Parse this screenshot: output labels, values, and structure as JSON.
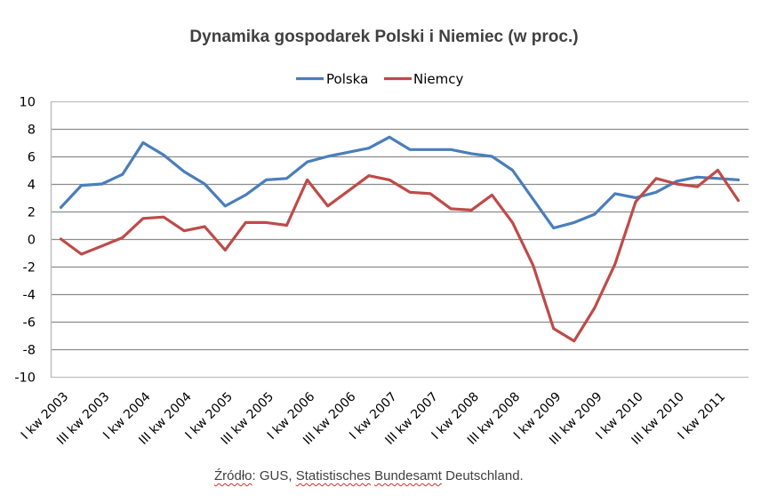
{
  "chart_data": {
    "type": "line",
    "title": "Dynamika gospodarek Polski i Niemiec (w proc.)",
    "xlabel": "",
    "ylabel": "",
    "ylim": [
      -10,
      10
    ],
    "yticks": [
      10,
      8,
      6,
      4,
      2,
      0,
      -2,
      -4,
      -6,
      -8,
      -10
    ],
    "grid": true,
    "legend_position": "top",
    "categories": [
      "I kw 2003",
      "II kw 2003",
      "III kw 2003",
      "IV kw 2003",
      "I kw 2004",
      "II kw 2004",
      "III kw 2004",
      "IV kw 2004",
      "I kw 2005",
      "II kw 2005",
      "III kw 2005",
      "IV kw 2005",
      "I kw 2006",
      "II kw 2006",
      "III kw 2006",
      "IV kw 2006",
      "I kw 2007",
      "II kw 2007",
      "III kw 2007",
      "IV kw 2007",
      "I kw 2008",
      "II kw 2008",
      "III kw 2008",
      "IV kw 2008",
      "I kw 2009",
      "II kw 2009",
      "III kw 2009",
      "IV kw 2009",
      "I kw 2010",
      "II kw 2010",
      "III kw 2010",
      "IV kw 2010",
      "I kw 2011",
      "II kw 2011"
    ],
    "visible_tick_labels": [
      "I kw 2003",
      "III kw 2003",
      "I kw 2004",
      "III kw 2004",
      "I kw 2005",
      "III kw 2005",
      "I kw 2006",
      "III kw 2006",
      "I kw 2007",
      "III kw 2007",
      "I kw 2008",
      "III kw 2008",
      "I kw 2009",
      "III kw 2009",
      "I kw 2010",
      "III kw 2010",
      "I kw 2011"
    ],
    "series": [
      {
        "name": "Polska",
        "color": "#4a7ebb",
        "values": [
          2.3,
          3.9,
          4.0,
          4.7,
          7.0,
          6.1,
          4.9,
          4.0,
          2.4,
          3.2,
          4.3,
          4.4,
          5.6,
          6.0,
          6.3,
          6.6,
          7.4,
          6.5,
          6.5,
          6.5,
          6.2,
          6.0,
          5.0,
          2.9,
          0.8,
          1.2,
          1.8,
          3.3,
          3.0,
          3.4,
          4.2,
          4.5,
          4.4,
          4.3
        ]
      },
      {
        "name": "Niemcy",
        "color": "#be4b48",
        "values": [
          0.0,
          -1.1,
          -0.5,
          0.1,
          1.5,
          1.6,
          0.6,
          0.9,
          -0.8,
          1.2,
          1.2,
          1.0,
          4.3,
          2.4,
          3.5,
          4.6,
          4.3,
          3.4,
          3.3,
          2.2,
          2.1,
          3.2,
          1.2,
          -1.9,
          -6.5,
          -7.4,
          -5.0,
          -1.8,
          2.7,
          4.4,
          4.0,
          3.8,
          5.0,
          2.8
        ]
      }
    ],
    "source": {
      "label": "Źródło",
      "sep": ": ",
      "org1": "GUS, ",
      "org2a": "Statistisches",
      "space": " ",
      "org2b": "Bundesamt",
      "org2c": " Deutschland."
    }
  },
  "colors": {
    "gridline": "#8c8c8c",
    "axis": "#bfbfbf",
    "title": "#404040"
  }
}
